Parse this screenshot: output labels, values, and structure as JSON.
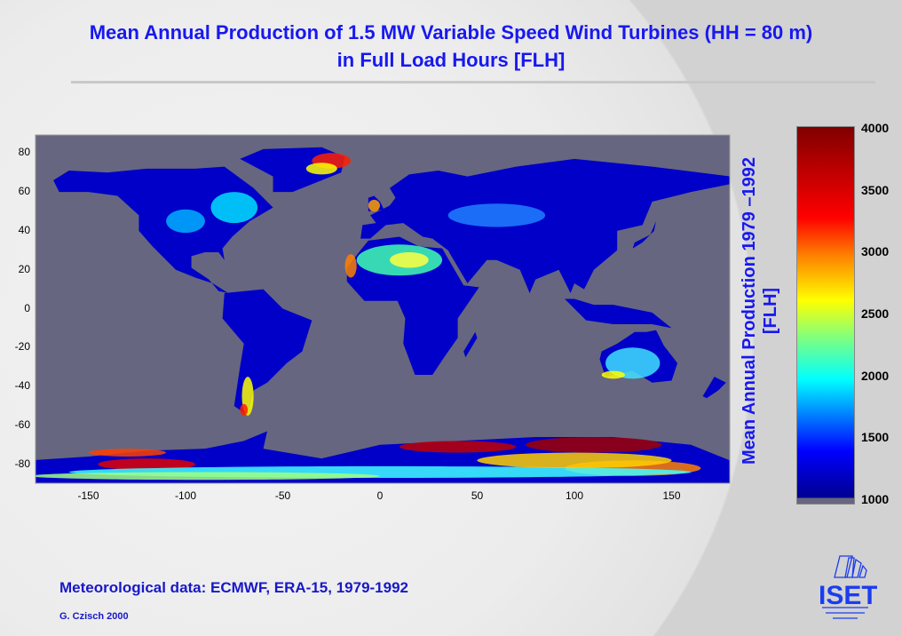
{
  "title_line1": "Mean Annual Production of 1.5 MW Variable Speed Wind Turbines (HH = 80 m)",
  "title_line2": "in Full Load Hours [FLH]",
  "footer": {
    "source": "Meteorological data: ECMWF, ERA-15, 1979-1992",
    "author": "G. Czisch 2000",
    "logo": "ISET"
  },
  "chart_data": {
    "type": "heatmap",
    "title": "Mean Annual Production of 1.5 MW Variable Speed Wind Turbines (HH = 80 m) in Full Load Hours [FLH]",
    "xlabel": "",
    "ylabel_line1": "Mean Annual Production 1979 –1992",
    "ylabel_line2": "[FLH]",
    "xlim": [
      -180,
      180
    ],
    "ylim": [
      -90,
      90
    ],
    "xticks": [
      "-150",
      "-100",
      "-50",
      "0",
      "50",
      "100",
      "150"
    ],
    "yticks": [
      "80",
      "60",
      "40",
      "20",
      "0",
      "-20",
      "-40",
      "-60",
      "-80"
    ],
    "colorbar": {
      "range": [
        1000,
        4000
      ],
      "colormap": "jet",
      "ticks": [
        "4000",
        "3500",
        "3000",
        "2500",
        "2000",
        "1500",
        "1000"
      ]
    },
    "ocean_color": "#666680",
    "highlights": [
      {
        "region": "Greenland east coast",
        "level": 3800
      },
      {
        "region": "Antarctica coast",
        "level": 4000
      },
      {
        "region": "Sahara",
        "level": 2600
      },
      {
        "region": "Patagonia",
        "level": 3000
      },
      {
        "region": "Australia south coast",
        "level": 2800
      },
      {
        "region": "North Sea / Western Europe coast",
        "level": 3000
      }
    ]
  }
}
